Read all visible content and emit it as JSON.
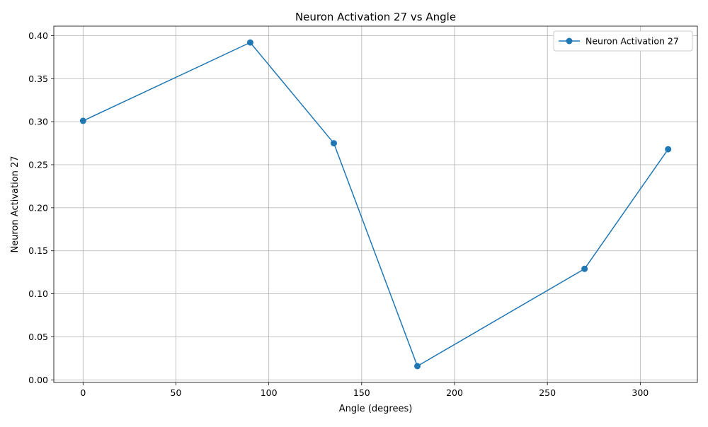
{
  "chart_data": {
    "type": "line",
    "title": "Neuron Activation 27 vs Angle",
    "xlabel": "Angle (degrees)",
    "ylabel": "Neuron Activation 27",
    "xlim": [
      -15.75,
      330.75
    ],
    "ylim": [
      -0.003,
      0.411
    ],
    "xticks": [
      0,
      50,
      100,
      150,
      200,
      250,
      300
    ],
    "yticks": [
      0.0,
      0.05,
      0.1,
      0.15,
      0.2,
      0.25,
      0.3,
      0.35,
      0.4
    ],
    "grid": true,
    "legend_position": "top-right",
    "series": [
      {
        "name": "Neuron Activation 27",
        "color": "#1f77b4",
        "marker": "circle",
        "x": [
          0,
          90,
          135,
          180,
          270,
          315
        ],
        "y": [
          0.301,
          0.392,
          0.275,
          0.016,
          0.129,
          0.268
        ]
      }
    ]
  }
}
